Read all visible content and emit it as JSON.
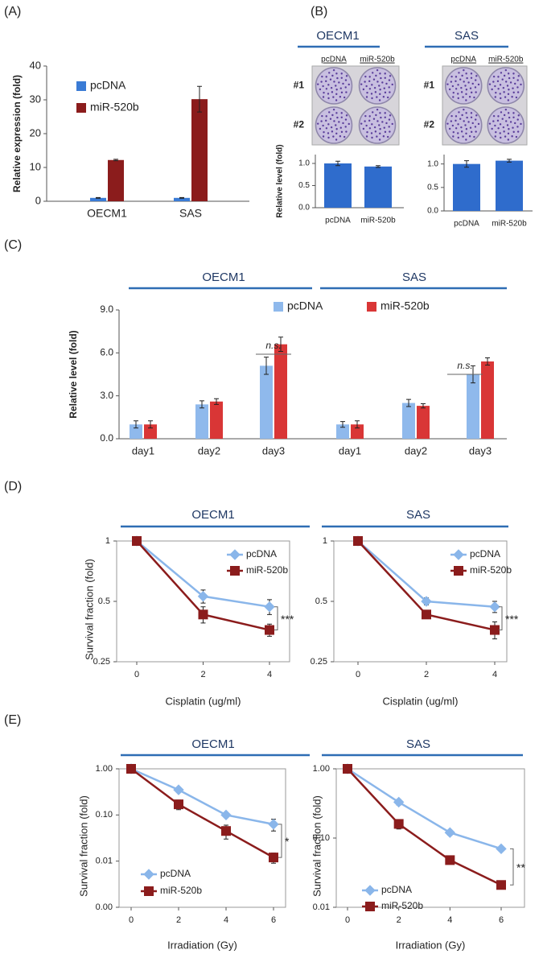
{
  "chart_data": [
    {
      "type": "bar",
      "panel": "(A)",
      "ylabel": "Relative expression (fold)",
      "categories": [
        "OECM1",
        "SAS"
      ],
      "series": [
        {
          "name": "pcDNA",
          "color": "#3a7bd5",
          "values": [
            1,
            1
          ],
          "errors": [
            0.1,
            0.1
          ]
        },
        {
          "name": "miR-520b",
          "color": "#8b1c1c",
          "values": [
            12.2,
            30.2
          ],
          "errors": [
            0.2,
            3.8
          ]
        }
      ],
      "ylim": [
        0,
        40
      ],
      "yticks": [
        0,
        10,
        20,
        30,
        40
      ]
    },
    {
      "type": "bar",
      "panel": "(B)",
      "title": "OECM1",
      "image_columns": [
        "pcDNA",
        "miR-520b"
      ],
      "image_rows": [
        "#1",
        "#2"
      ],
      "ylabel": "Relative level (fold)",
      "categories": [
        "pcDNA",
        "miR-520b"
      ],
      "values": [
        1.0,
        0.93
      ],
      "errors": [
        0.05,
        0.02
      ],
      "color": "#2f6ccc",
      "ylim": [
        0,
        1.2
      ],
      "yticks": [
        {
          "value": 0,
          "label": "0.0"
        },
        {
          "value": 0.5,
          "label": "0.5"
        },
        {
          "value": 1,
          "label": "1.0"
        }
      ]
    },
    {
      "type": "bar",
      "title": "SAS",
      "image_columns": [
        "pcDNA",
        "miR-520b"
      ],
      "image_rows": [
        "#1",
        "#2"
      ],
      "categories": [
        "pcDNA",
        "miR-520b"
      ],
      "values": [
        1.0,
        1.07
      ],
      "errors": [
        0.07,
        0.03
      ],
      "color": "#2f6ccc",
      "ylim": [
        0,
        1.2
      ],
      "yticks": [
        {
          "value": 0,
          "label": "0.0"
        },
        {
          "value": 0.5,
          "label": "0.5"
        },
        {
          "value": 1,
          "label": "1.0"
        }
      ]
    },
    {
      "type": "bar",
      "panel": "(C)",
      "group_titles": [
        "OECM1",
        "SAS"
      ],
      "ylabel": "Relative level (fold)",
      "categories": [
        "day1",
        "day2",
        "day3",
        "day1",
        "day2",
        "day3"
      ],
      "series": [
        {
          "name": "pcDNA",
          "color": "#8fb9ec",
          "values": [
            1.0,
            2.4,
            5.1,
            1.0,
            2.5,
            4.5
          ],
          "errors": [
            0.25,
            0.25,
            0.6,
            0.2,
            0.25,
            0.6
          ]
        },
        {
          "name": "miR-520b",
          "color": "#d93636",
          "values": [
            1.0,
            2.6,
            6.6,
            1.0,
            2.3,
            5.4
          ],
          "errors": [
            0.25,
            0.2,
            0.5,
            0.25,
            0.15,
            0.25
          ]
        }
      ],
      "ylim": [
        0,
        9
      ],
      "yticks": [
        {
          "value": 0,
          "label": "0.0"
        },
        {
          "value": 3,
          "label": "3.0"
        },
        {
          "value": 6,
          "label": "6.0"
        },
        {
          "value": 9,
          "label": "9.0"
        }
      ],
      "annotations": [
        "n.s.",
        "n.s."
      ]
    },
    {
      "type": "line",
      "panel": "(D)",
      "title": "OECM1",
      "xlabel": "Cisplatin (ug/ml)",
      "ylabel": "Survival fraction (fold)",
      "x": [
        0,
        2,
        4
      ],
      "xlim": [
        0,
        4
      ],
      "xticks": [
        0,
        2,
        4
      ],
      "ylim": [
        0.25,
        1
      ],
      "yticks": [
        0.25,
        0.5,
        1
      ],
      "log_y": true,
      "series": [
        {
          "name": "pcDNA",
          "color": "#8ab6ea",
          "marker": "diamond",
          "values": [
            1,
            0.53,
            0.47
          ],
          "errors": [
            0,
            0.04,
            0.04
          ]
        },
        {
          "name": "miR-520b",
          "color": "#8b1c1c",
          "marker": "square",
          "values": [
            1,
            0.43,
            0.36
          ],
          "errors": [
            0,
            0.04,
            0.025
          ]
        }
      ],
      "annotation": "***"
    },
    {
      "type": "line",
      "title": "SAS",
      "xlabel": "Cisplatin (ug/ml)",
      "x": [
        0,
        2,
        4
      ],
      "xlim": [
        0,
        4
      ],
      "xticks": [
        0,
        2,
        4
      ],
      "ylim": [
        0.25,
        1
      ],
      "yticks": [
        0.25,
        0.5,
        1
      ],
      "log_y": true,
      "series": [
        {
          "name": "pcDNA",
          "color": "#8ab6ea",
          "marker": "diamond",
          "values": [
            1,
            0.5,
            0.47
          ],
          "errors": [
            0.03,
            0.02,
            0.03
          ]
        },
        {
          "name": "miR-520b",
          "color": "#8b1c1c",
          "marker": "square",
          "values": [
            1,
            0.43,
            0.36
          ],
          "errors": [
            0,
            0.02,
            0.035
          ]
        }
      ],
      "annotation": "***"
    },
    {
      "type": "line",
      "panel": "(E)",
      "title": "OECM1",
      "xlabel": "Irradiation (Gy)",
      "ylabel": "Survival fraction (fold)",
      "x": [
        0,
        2,
        4,
        6
      ],
      "xlim": [
        0,
        6
      ],
      "xticks": [
        0,
        2,
        4,
        6
      ],
      "ylim": [
        0.001,
        1
      ],
      "log_y": true,
      "yticks": [
        {
          "value": 0.001,
          "label": "0.00"
        },
        {
          "value": 0.01,
          "label": "0.01"
        },
        {
          "value": 0.1,
          "label": "0.10"
        },
        {
          "value": 1,
          "label": "1.00"
        }
      ],
      "series": [
        {
          "name": "pcDNA",
          "color": "#8ab6ea",
          "marker": "diamond",
          "values": [
            1,
            0.35,
            0.1,
            0.063
          ],
          "errors": [
            0,
            0.04,
            0.01,
            0.018
          ]
        },
        {
          "name": "miR-520b",
          "color": "#8b1c1c",
          "marker": "square",
          "values": [
            1,
            0.17,
            0.045,
            0.012
          ],
          "errors": [
            0,
            0.04,
            0.015,
            0.003
          ]
        }
      ],
      "annotation": "*"
    },
    {
      "type": "line",
      "title": "SAS",
      "xlabel": "Irradiation (Gy)",
      "ylabel": "Survival fraction (fold)",
      "x": [
        0,
        2,
        4,
        6
      ],
      "xlim": [
        0,
        6
      ],
      "xticks": [
        0,
        2,
        4,
        6
      ],
      "ylim": [
        0.01,
        1
      ],
      "log_y": true,
      "yticks": [
        {
          "value": 0.01,
          "label": "0.01"
        },
        {
          "value": 0.1,
          "label": "0.10"
        },
        {
          "value": 1,
          "label": "1.00"
        }
      ],
      "series": [
        {
          "name": "pcDNA",
          "color": "#8ab6ea",
          "marker": "diamond",
          "values": [
            1,
            0.33,
            0.12,
            0.07
          ],
          "errors": [
            0,
            0.03,
            0.01,
            0.005
          ]
        },
        {
          "name": "miR-520b",
          "color": "#8b1c1c",
          "marker": "square",
          "values": [
            1,
            0.16,
            0.048,
            0.021
          ],
          "errors": [
            0,
            0.025,
            0.004,
            0.002
          ]
        }
      ],
      "annotation": "**"
    }
  ]
}
